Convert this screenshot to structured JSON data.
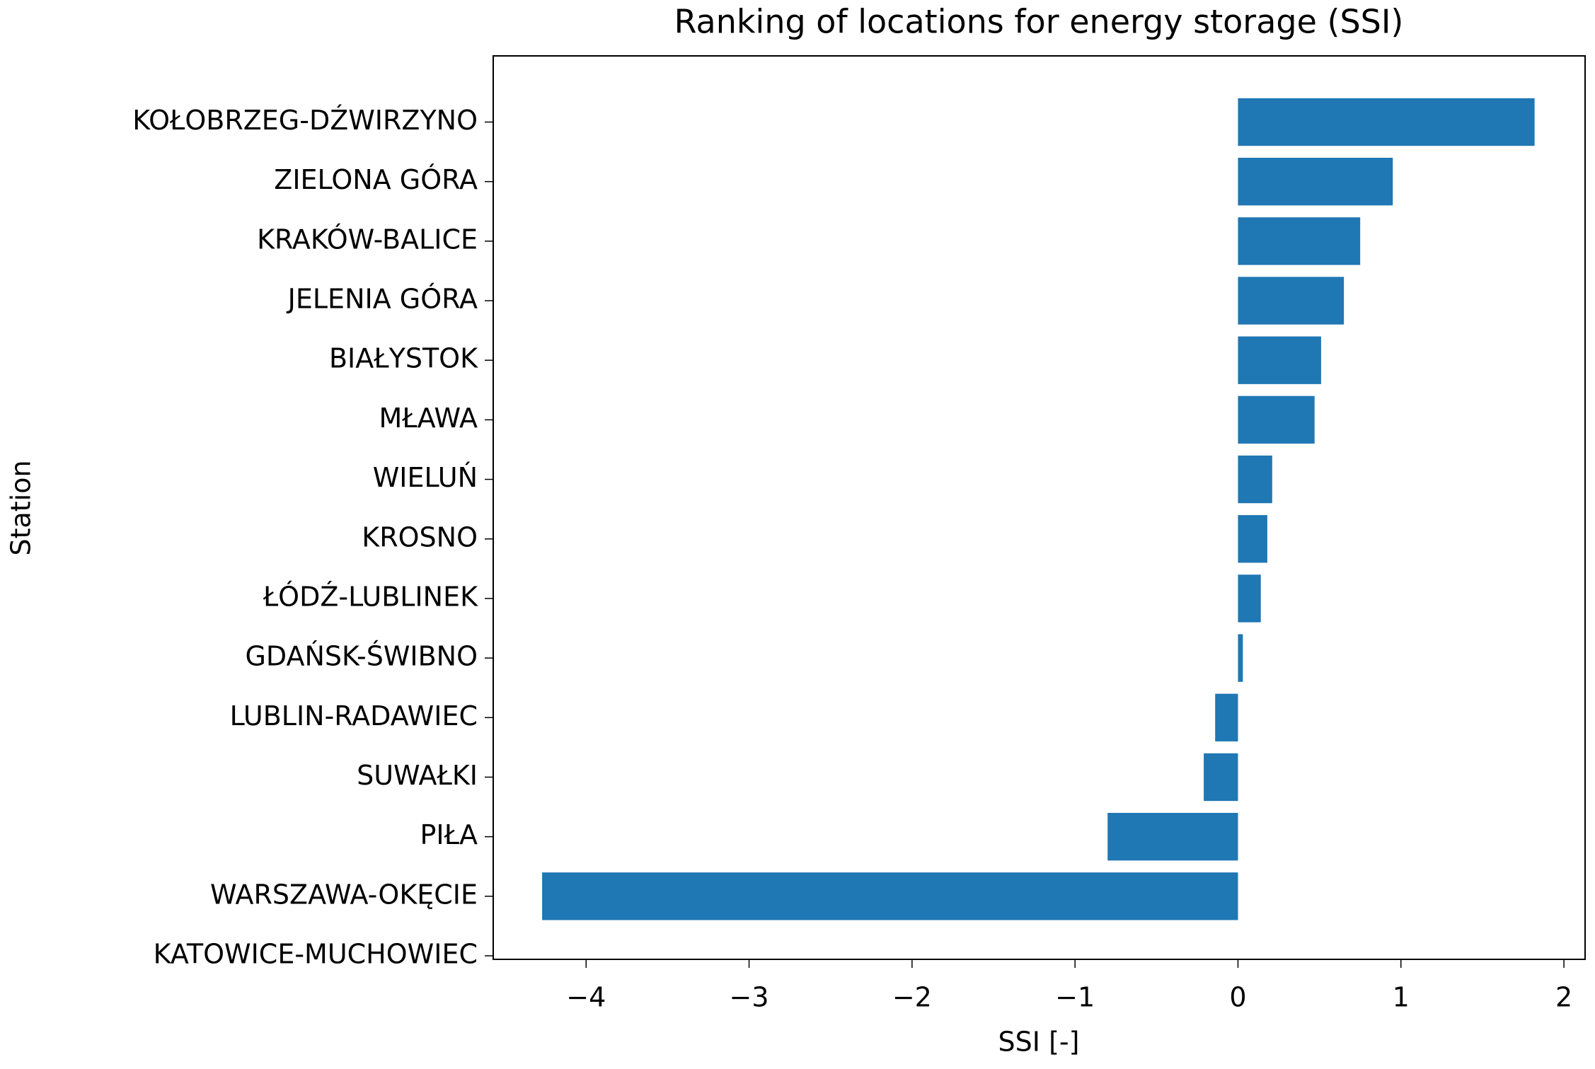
{
  "chart_data": {
    "type": "barh",
    "title": "Ranking of locations for energy storage (SSI)",
    "x_label": "SSI [-]",
    "y_label": "Station",
    "categories": [
      "KOŁOBRZEG-DŹWIRZYNO",
      "ZIELONA GÓRA",
      "KRAKÓW-BALICE",
      "JELENIA GÓRA",
      "BIAŁYSTOK",
      "MŁAWA",
      "WIELUŃ",
      "KROSNO",
      "ŁÓDŹ-LUBLINEK",
      "GDAŃSK-ŚWIBNO",
      "LUBLIN-RADAWIEC",
      "SUWAŁKI",
      "PIŁA",
      "WARSZAWA-OKĘCIE",
      "KATOWICE-MUCHOWIEC"
    ],
    "values": [
      1.82,
      0.95,
      0.75,
      0.65,
      0.51,
      0.47,
      0.21,
      0.18,
      0.14,
      0.03,
      -0.14,
      -0.21,
      -0.8,
      -4.27,
      0
    ],
    "color": "#1f77b4",
    "xlim": [
      -4.57,
      2.13
    ],
    "xticks": [
      {
        "value": -4,
        "label": "−4"
      },
      {
        "value": -3,
        "label": "−3"
      },
      {
        "value": -2,
        "label": "−2"
      },
      {
        "value": -1,
        "label": "−1"
      },
      0,
      1,
      2
    ]
  }
}
